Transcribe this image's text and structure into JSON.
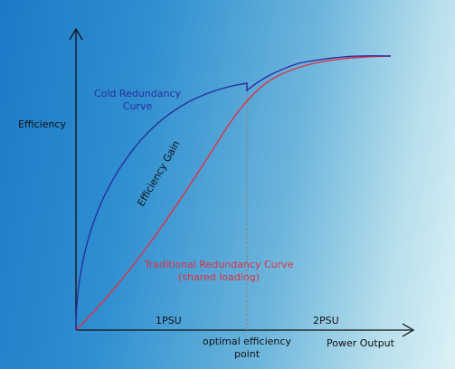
{
  "diagram": {
    "y_axis_label": "Efficiency",
    "x_axis_label": "Power Output",
    "region_left_label": "1PSU",
    "region_right_label": "2PSU",
    "optimal_label_line1": "optimal efficiency",
    "optimal_label_line2": "point",
    "cold_curve_label_line1": "Cold Redundancy",
    "cold_curve_label_line2": "Curve",
    "gain_label": "Efficiency Gain",
    "traditional_label_line1": "Traditional Redundancy Curve",
    "traditional_label_line2": "(shared loading)"
  },
  "colors": {
    "cold_curve": "#2a2ea0",
    "traditional_curve": "#e03040",
    "axis": "#111111",
    "optimal_line": "#8a8a8a",
    "text_dark": "#111111"
  }
}
